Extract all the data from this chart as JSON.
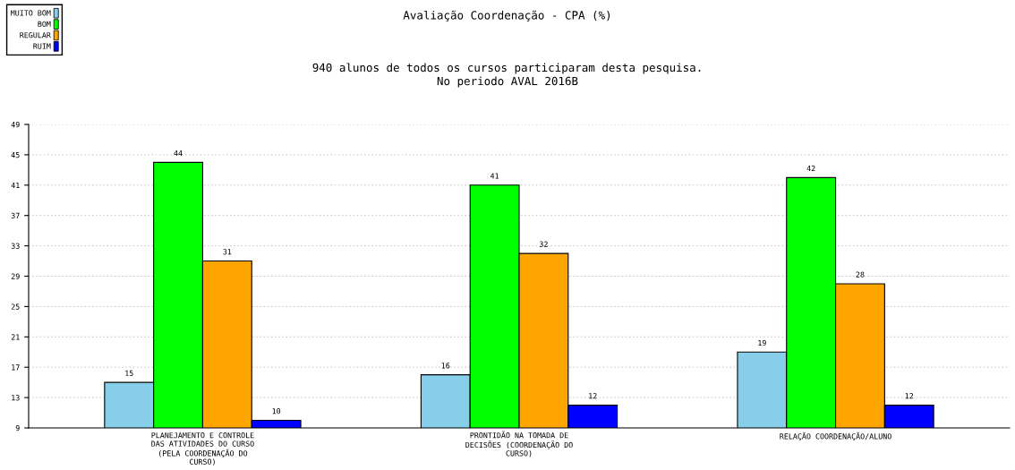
{
  "chart_data": {
    "type": "bar",
    "title": "Avaliação Coordenação - CPA (%)",
    "subtitle": "940 alunos de todos os cursos participaram desta pesquisa.\nNo periodo AVAL 2016B",
    "categories": [
      "PLANEJAMENTO E CONTROLE\nDAS ATIVIDADES DO CURSO\n(PELA COORDENAÇÃO DO\nCURSO)",
      "PRONTIDÃO NA TOMADA DE\nDECISÕES (COORDENAÇÃO DO\nCURSO)",
      "RELAÇÃO COORDENAÇÃO/ALUNO"
    ],
    "series": [
      {
        "name": "MUITO BOM",
        "color": "#87ceeb",
        "values": [
          15,
          16,
          19
        ]
      },
      {
        "name": "BOM",
        "color": "#00ff00",
        "values": [
          44,
          41,
          42
        ]
      },
      {
        "name": "REGULAR",
        "color": "#ffa500",
        "values": [
          31,
          32,
          28
        ]
      },
      {
        "name": "RUIM",
        "color": "#0000ff",
        "values": [
          10,
          12,
          12
        ]
      }
    ],
    "ylim": [
      9,
      49
    ],
    "yticks": [
      9,
      13,
      17,
      21,
      25,
      29,
      33,
      37,
      41,
      45,
      49
    ],
    "grid": "y",
    "legend": "top left",
    "data_labels": true
  }
}
